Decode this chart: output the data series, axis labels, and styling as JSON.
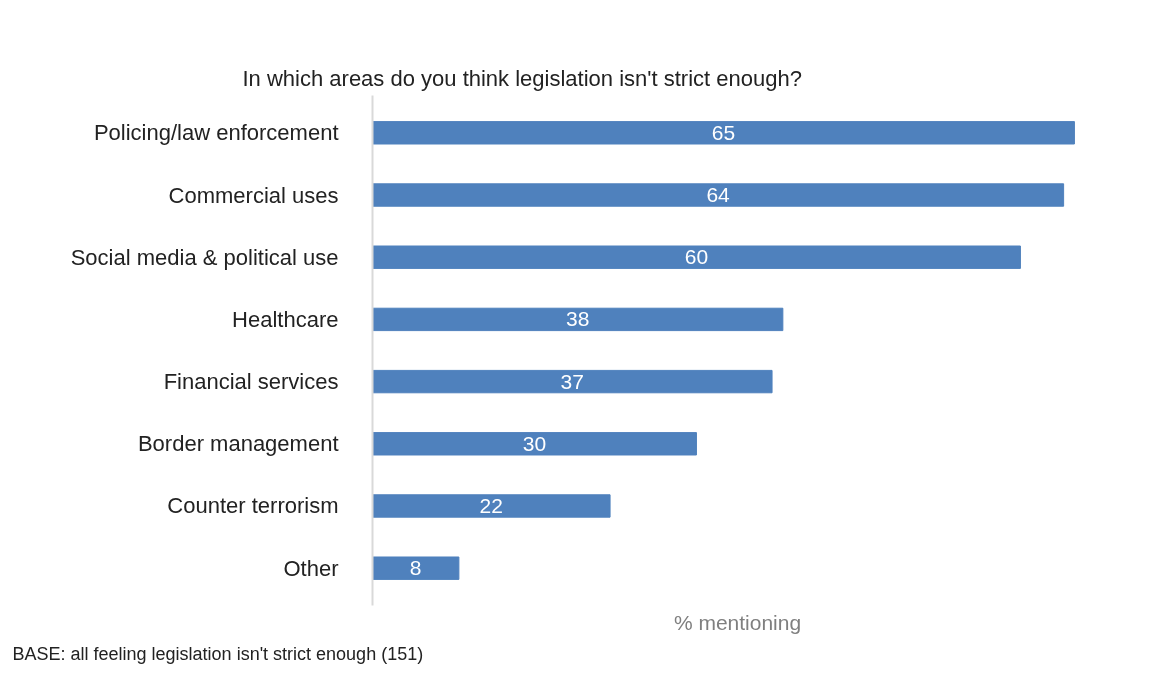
{
  "chart_data": {
    "type": "bar",
    "orientation": "horizontal",
    "title": "In which areas do you think legislation isn't strict enough?",
    "xlabel": "% mentioning",
    "categories": [
      "Policing/law enforcement",
      "Commercial uses",
      "Social media & political use",
      "Healthcare",
      "Financial services",
      "Border management",
      "Counter terrorism",
      "Other"
    ],
    "values": [
      65,
      64,
      60,
      38,
      37,
      30,
      22,
      8
    ],
    "color": "#4f81bd",
    "data_labels": true,
    "grid": false,
    "legend": false,
    "tick_labels": "y",
    "annotations": [
      "BASE: all feeling legislation isn't strict enough (151)"
    ]
  }
}
